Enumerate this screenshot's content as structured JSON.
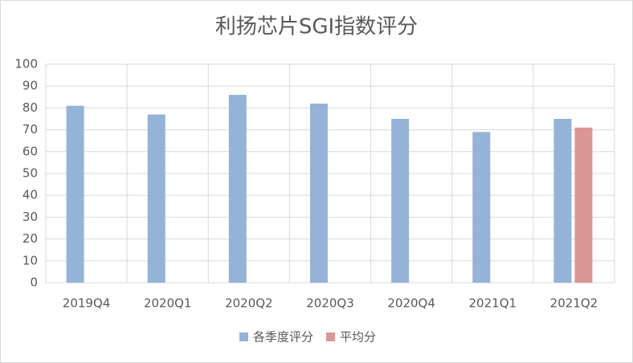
{
  "chart_data": {
    "type": "bar",
    "title": "利扬芯片SGI指数评分",
    "categories": [
      "2019Q4",
      "2020Q1",
      "2020Q2",
      "2020Q3",
      "2020Q4",
      "2021Q1",
      "2021Q2"
    ],
    "series": [
      {
        "name": "各季度评分",
        "color": "#95b3d7",
        "values": [
          81,
          77,
          86,
          82,
          75,
          69,
          75
        ]
      },
      {
        "name": "平均分",
        "color": "#d99694",
        "values": [
          null,
          null,
          null,
          null,
          null,
          null,
          71
        ]
      }
    ],
    "ylim": [
      0,
      100
    ],
    "yticks": [
      0,
      10,
      20,
      30,
      40,
      50,
      60,
      70,
      80,
      90,
      100
    ],
    "grid": true,
    "legend": "bottom"
  }
}
